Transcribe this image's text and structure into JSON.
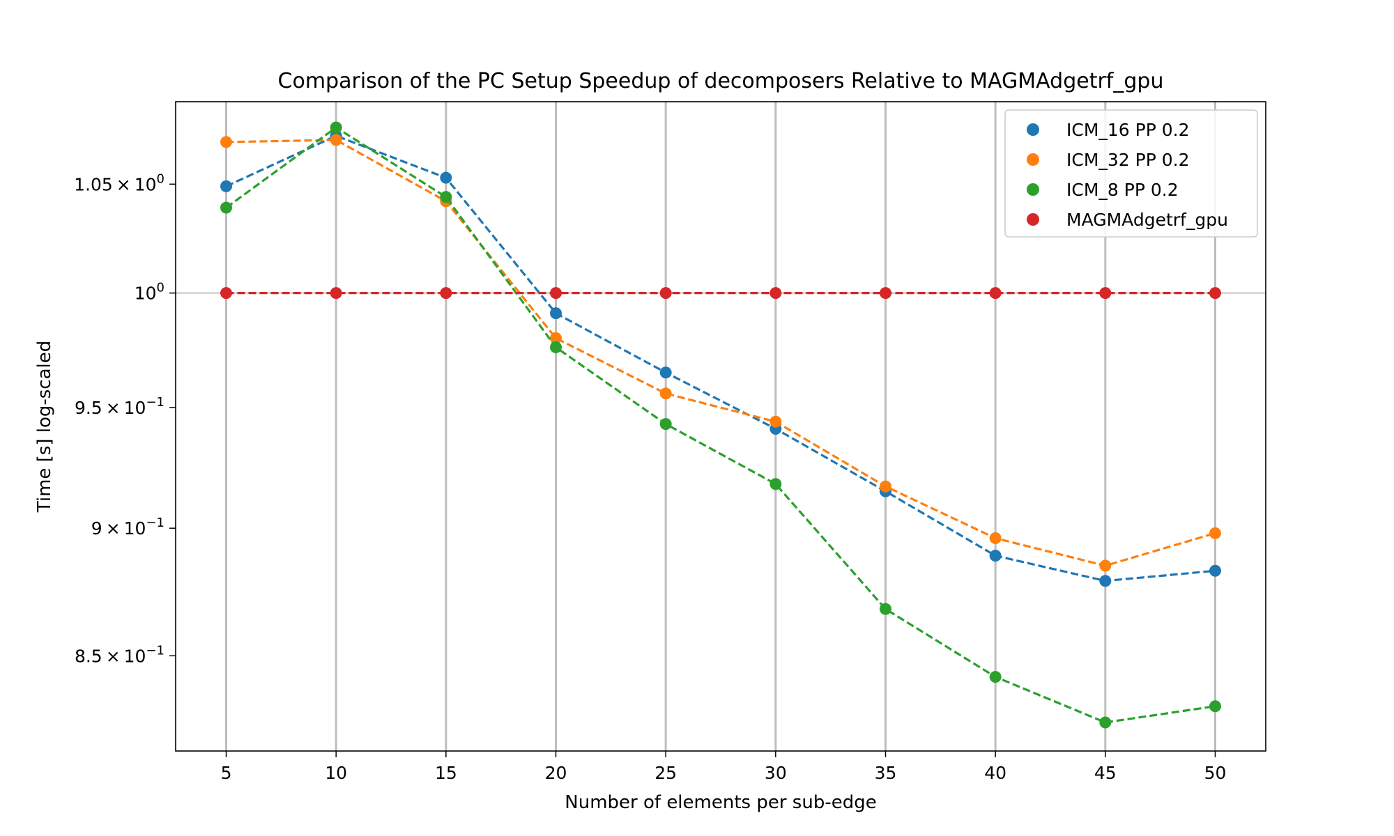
{
  "chart_data": {
    "type": "line",
    "title": "Comparison of the PC Setup Speedup of decomposers Relative to MAGMAdgetrf_gpu",
    "xlabel": "Number of elements per sub-edge",
    "ylabel": "Time [s] log-scaled",
    "yscale": "log",
    "grid": "vertical",
    "legend_position": "top-right",
    "x": [
      5,
      10,
      15,
      20,
      25,
      30,
      35,
      40,
      45,
      50
    ],
    "xlim": [
      2.7,
      52.3
    ],
    "ylim": [
      0.8145,
      1.0895
    ],
    "x_ticks": [
      "5",
      "10",
      "15",
      "20",
      "25",
      "30",
      "35",
      "40",
      "45",
      "50"
    ],
    "y_ticks": [
      {
        "value": 1.05,
        "mantissa": "1.05",
        "exponent": "0"
      },
      {
        "value": 1.0,
        "mantissa": "",
        "exponent": "0"
      },
      {
        "value": 0.95,
        "mantissa": "9.5",
        "exponent": "−1"
      },
      {
        "value": 0.9,
        "mantissa": "9",
        "exponent": "−1"
      },
      {
        "value": 0.85,
        "mantissa": "8.5",
        "exponent": "−1"
      }
    ],
    "series": [
      {
        "name": "ICM_16 PP 0.2",
        "color": "#1f77b4",
        "values": [
          1.049,
          1.073,
          1.053,
          0.991,
          0.965,
          0.941,
          0.915,
          0.889,
          0.879,
          0.883
        ]
      },
      {
        "name": "ICM_32 PP 0.2",
        "color": "#ff7f0e",
        "values": [
          1.07,
          1.071,
          1.042,
          0.98,
          0.956,
          0.944,
          0.917,
          0.896,
          0.885,
          0.898
        ]
      },
      {
        "name": "ICM_8 PP 0.2",
        "color": "#2ca02c",
        "values": [
          1.039,
          1.077,
          1.044,
          0.976,
          0.943,
          0.918,
          0.868,
          0.842,
          0.825,
          0.831
        ]
      },
      {
        "name": "MAGMAdgetrf_gpu",
        "color": "#d62728",
        "values": [
          1.0,
          1.0,
          1.0,
          1.0,
          1.0,
          1.0,
          1.0,
          1.0,
          1.0,
          1.0
        ]
      }
    ]
  }
}
